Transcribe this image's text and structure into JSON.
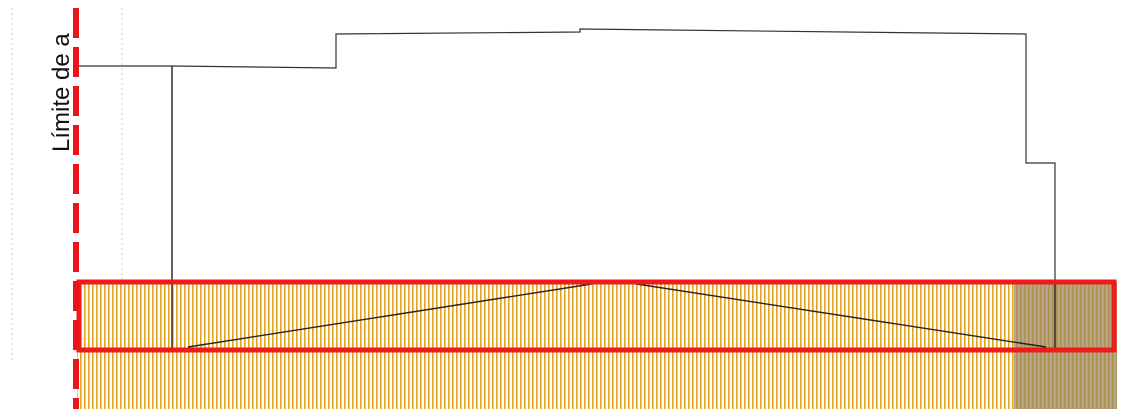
{
  "drawing": {
    "boundary_label": "Límite de a",
    "colors": {
      "background": "#ffffff",
      "boundary_dash": "#e8161b",
      "outline": "#333333",
      "hatch": "#e3a31e",
      "hatch_dark": "#9c8a62",
      "highlight": "#f01a1a",
      "guide": "#cfcfcf"
    }
  }
}
